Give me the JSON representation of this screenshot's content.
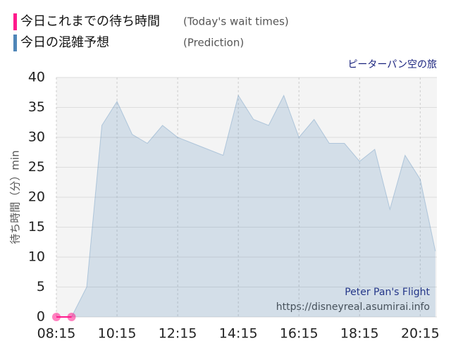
{
  "chart_data": {
    "type": "area",
    "subtitle": "ピーターパン空の旅",
    "y_label": "待ち時間（分）min",
    "annotations": [
      "Peter Pan's Flight",
      "https://disneyreal.asumirai.info"
    ],
    "xlim": [
      495,
      1248
    ],
    "xticks": [
      {
        "value": 495,
        "label": "08:15"
      },
      {
        "value": 615,
        "label": "10:15"
      },
      {
        "value": 735,
        "label": "12:15"
      },
      {
        "value": 855,
        "label": "14:15"
      },
      {
        "value": 975,
        "label": "16:15"
      },
      {
        "value": 1095,
        "label": "18:15"
      },
      {
        "value": 1215,
        "label": "20:15"
      }
    ],
    "ylim": [
      0,
      40
    ],
    "yticks": [
      0,
      5,
      10,
      15,
      20,
      25,
      30,
      35,
      40
    ],
    "grid": true,
    "series": [
      {
        "name": "今日これまでの待ち時間",
        "label_en": "(Today's wait times)",
        "color": "#ff1a8c",
        "style": "points",
        "x": [
          495,
          525
        ],
        "values": [
          0,
          0
        ]
      },
      {
        "name": "今日の混雑予想",
        "label_en": "(Prediction)",
        "color": "#4f86b8",
        "style": "area",
        "x": [
          525,
          555,
          585,
          615,
          645,
          675,
          705,
          735,
          765,
          795,
          825,
          855,
          885,
          915,
          945,
          975,
          1005,
          1035,
          1065,
          1095,
          1125,
          1155,
          1185,
          1215,
          1245
        ],
        "values": [
          0,
          5,
          32,
          36,
          30.5,
          29,
          32,
          30,
          29,
          28,
          27,
          37,
          33,
          32,
          37,
          30,
          33,
          29,
          29,
          26,
          28,
          18,
          27,
          23,
          11
        ]
      }
    ]
  }
}
